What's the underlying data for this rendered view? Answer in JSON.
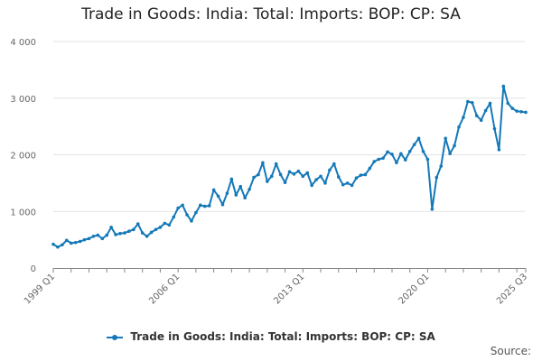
{
  "chart_data": {
    "type": "line",
    "title": "Trade in Goods: India: Total: Imports: BOP: CP: SA",
    "xlabel": "",
    "ylabel": "",
    "ylim": [
      0,
      4000
    ],
    "yticks": [
      0,
      1000,
      2000,
      3000,
      4000
    ],
    "ytick_labels": [
      "0",
      "1 000",
      "2 000",
      "3 000",
      "4 000"
    ],
    "grid": true,
    "legend_position": "bottom",
    "color": "#1479b8",
    "x_start": "1999 Q1",
    "x_end": "2025 Q3",
    "x_tick_labels": [
      {
        "label": "1999 Q1",
        "index": 0
      },
      {
        "label": "2006 Q1",
        "index": 28
      },
      {
        "label": "2013 Q1",
        "index": 56
      },
      {
        "label": "2020 Q1",
        "index": 84
      },
      {
        "label": "2025 Q3",
        "index": 106
      }
    ],
    "x_tick_every": 4,
    "series": [
      {
        "name": "Trade in Goods: India: Total: Imports: BOP: CP: SA",
        "values": [
          420,
          370,
          410,
          490,
          440,
          450,
          470,
          500,
          520,
          560,
          580,
          520,
          580,
          720,
          590,
          610,
          620,
          650,
          680,
          780,
          620,
          560,
          630,
          680,
          720,
          790,
          760,
          900,
          1060,
          1110,
          940,
          830,
          980,
          1110,
          1090,
          1100,
          1380,
          1270,
          1120,
          1320,
          1570,
          1290,
          1440,
          1240,
          1390,
          1600,
          1650,
          1860,
          1530,
          1620,
          1840,
          1650,
          1510,
          1700,
          1660,
          1710,
          1620,
          1680,
          1460,
          1560,
          1620,
          1500,
          1730,
          1840,
          1610,
          1470,
          1500,
          1460,
          1590,
          1640,
          1650,
          1760,
          1880,
          1920,
          1940,
          2050,
          2010,
          1860,
          2020,
          1910,
          2060,
          2180,
          2290,
          2060,
          1920,
          1040,
          1600,
          1800,
          2290,
          2020,
          2160,
          2490,
          2660,
          2940,
          2920,
          2690,
          2610,
          2780,
          2910,
          2460,
          2090,
          3210,
          2910,
          2820,
          2770,
          2760,
          2750
        ]
      }
    ]
  },
  "source_label": "Source:"
}
